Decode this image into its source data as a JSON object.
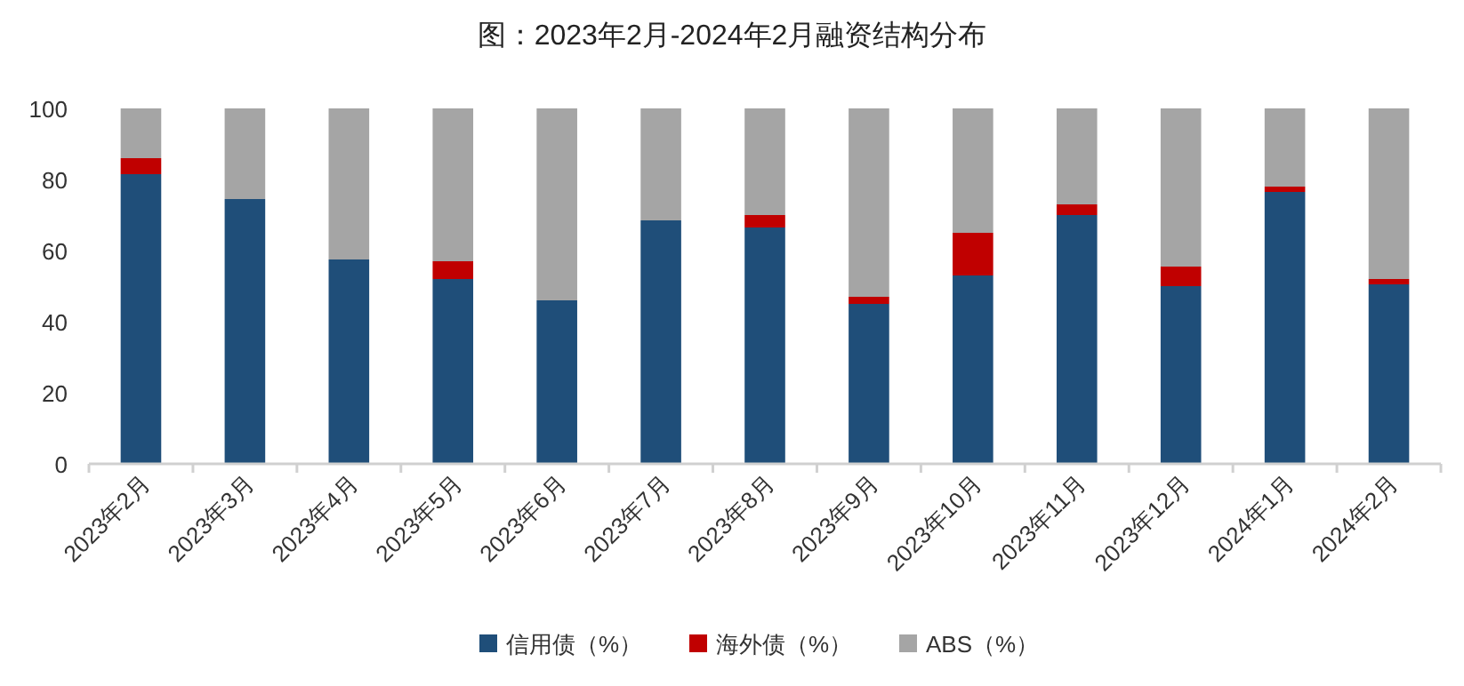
{
  "chart_data": {
    "type": "bar",
    "title": "图：2023年2月-2024年2月融资结构分布",
    "stacked": true,
    "categories": [
      "2023年2月",
      "2023年3月",
      "2023年4月",
      "2023年5月",
      "2023年6月",
      "2023年7月",
      "2023年8月",
      "2023年9月",
      "2023年10月",
      "2023年11月",
      "2023年12月",
      "2024年1月",
      "2024年2月"
    ],
    "series": [
      {
        "name": "信用债（%）",
        "color": "#1f4e79",
        "values": [
          81.5,
          74.5,
          57.5,
          52,
          46,
          68.5,
          66.5,
          45,
          53,
          70,
          50,
          76.5,
          50.5
        ]
      },
      {
        "name": "海外债（%）",
        "color": "#c00000",
        "values": [
          4.5,
          0,
          0,
          5,
          0,
          0,
          3.5,
          2,
          12,
          3,
          5.5,
          1.5,
          1.5
        ]
      },
      {
        "name": "ABS（%）",
        "color": "#a5a5a5",
        "values": [
          14,
          25.5,
          42.5,
          43,
          54,
          31.5,
          30,
          53,
          35,
          27,
          44.5,
          22,
          48
        ]
      }
    ],
    "ylim": [
      0,
      100
    ],
    "yticks": [
      0,
      20,
      40,
      60,
      80,
      100
    ],
    "legend": "bottom"
  }
}
